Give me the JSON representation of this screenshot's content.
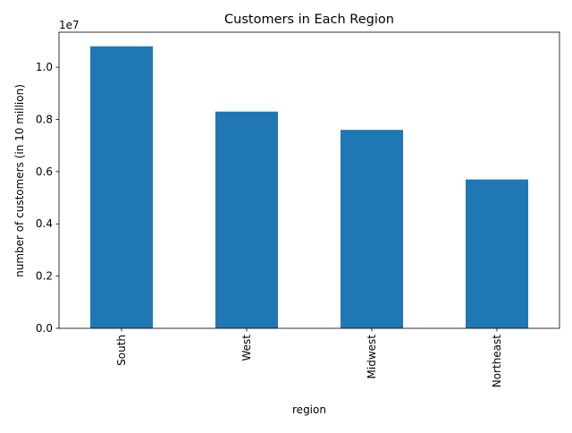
{
  "chart_data": {
    "type": "bar",
    "title": "Customers in Each Region",
    "xlabel": "region",
    "ylabel": "number of customers (in 10 million)",
    "offset_label": "1e7",
    "categories": [
      "South",
      "West",
      "Midwest",
      "Northeast"
    ],
    "values": [
      10800000,
      8300000,
      7600000,
      5700000
    ],
    "ylim": [
      0,
      11340000
    ],
    "yticks": [
      0,
      2000000,
      4000000,
      6000000,
      8000000,
      10000000
    ],
    "ytick_labels": [
      "0.0",
      "0.2",
      "0.4",
      "0.6",
      "0.8",
      "1.0"
    ],
    "bar_color": "#1f77b4",
    "grid": false,
    "legend": "none"
  }
}
